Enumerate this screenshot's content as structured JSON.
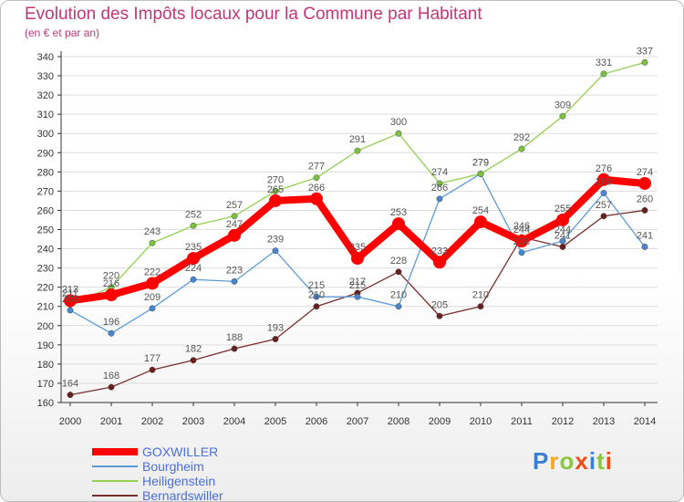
{
  "title": "Evolution des Impôts locaux pour la Commune par Habitant",
  "subtitle": "(en € et par an)",
  "logo": {
    "text": "Proxiti",
    "letters": [
      {
        "ch": "P",
        "color": "#3b7fd1"
      },
      {
        "ch": "r",
        "color": "#f5a623"
      },
      {
        "ch": "o",
        "color": "#8cc63f"
      },
      {
        "ch": "x",
        "color": "#e94e1b"
      },
      {
        "ch": "i",
        "color": "#3b7fd1"
      },
      {
        "ch": "t",
        "color": "#8cc63f"
      },
      {
        "ch": "i",
        "color": "#e94e1b"
      }
    ]
  },
  "colors": {
    "title": "#c2367a",
    "axis": "#333333",
    "grid": "#dddddd",
    "label": "#555555",
    "legend_text": "#4a6fe0"
  },
  "chart_data": {
    "type": "line",
    "x": [
      "2000",
      "2001",
      "2002",
      "2003",
      "2004",
      "2005",
      "2006",
      "2007",
      "2008",
      "2009",
      "2010",
      "2011",
      "2012",
      "2013",
      "2014"
    ],
    "ylim": [
      160,
      340
    ],
    "yticks": [
      160,
      170,
      180,
      190,
      200,
      210,
      220,
      230,
      240,
      250,
      260,
      270,
      280,
      290,
      300,
      310,
      320,
      330,
      340
    ],
    "grid": "horizontal",
    "legend_position": "bottom-left",
    "series": [
      {
        "name": "GOXWILLER",
        "color": "#ff0000",
        "marker": "#ff0000",
        "width": 8,
        "marker_r": 7,
        "values": [
          213,
          216,
          222,
          235,
          247,
          265,
          266,
          235,
          253,
          233,
          254,
          244,
          255,
          276,
          274
        ]
      },
      {
        "name": "Bourgheim",
        "color": "#5b9bd5",
        "marker": "#4a86d0",
        "width": 1.3,
        "marker_r": 3.2,
        "values": [
          208,
          196,
          209,
          224,
          223,
          239,
          215,
          215,
          210,
          266,
          279,
          238,
          244,
          269,
          241
        ]
      },
      {
        "name": "Heiligenstein",
        "color": "#92d050",
        "marker": "#7cc242",
        "width": 1.3,
        "marker_r": 3.2,
        "values": [
          211,
          220,
          243,
          252,
          257,
          270,
          277,
          291,
          300,
          274,
          279,
          292,
          309,
          331,
          337
        ]
      },
      {
        "name": "Bernardswiller",
        "color": "#7b2c2c",
        "marker": "#6b1e1e",
        "width": 1.3,
        "marker_r": 3.2,
        "values": [
          164,
          168,
          177,
          182,
          188,
          193,
          210,
          217,
          228,
          205,
          210,
          246,
          241,
          257,
          260
        ]
      }
    ],
    "data_labels": [
      {
        "series": "GOXWILLER",
        "values": [
          213,
          216,
          222,
          235,
          247,
          265,
          266,
          235,
          253,
          233,
          254,
          244,
          255,
          276,
          274
        ]
      },
      {
        "series": "Bourgheim",
        "values": [
          208,
          196,
          209,
          224,
          223,
          239,
          215,
          215,
          210,
          266,
          279,
          238,
          244,
          269,
          241
        ]
      },
      {
        "series": "Heiligenstein",
        "values": [
          211,
          220,
          243,
          252,
          257,
          270,
          277,
          291,
          300,
          274,
          279,
          292,
          309,
          331,
          337
        ]
      },
      {
        "series": "Bernardswiller",
        "values": [
          164,
          168,
          177,
          182,
          188,
          193,
          210,
          217,
          228,
          205,
          210,
          246,
          241,
          257,
          260
        ]
      }
    ]
  }
}
